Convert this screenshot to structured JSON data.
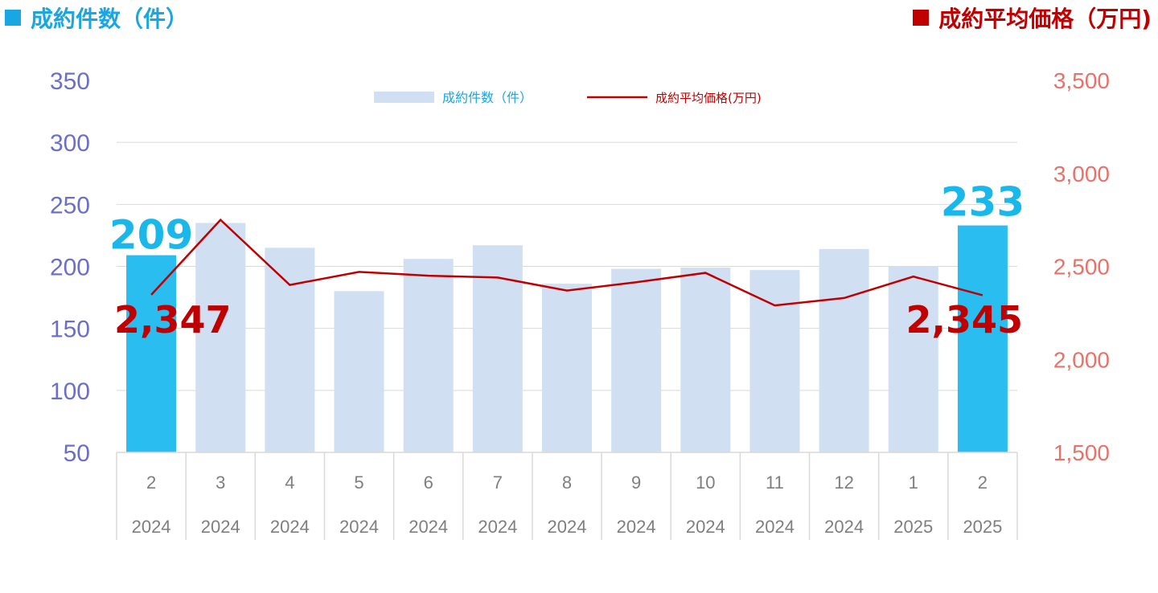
{
  "header": {
    "left_title": "成約件数（件）",
    "right_title": "成約平均価格（万円)",
    "left_color": "#1aa5e3",
    "right_color": "#c00000"
  },
  "chart_data": {
    "type": "bar",
    "categories": [
      {
        "month": "2",
        "year": "2024"
      },
      {
        "month": "3",
        "year": "2024"
      },
      {
        "month": "4",
        "year": "2024"
      },
      {
        "month": "5",
        "year": "2024"
      },
      {
        "month": "6",
        "year": "2024"
      },
      {
        "month": "7",
        "year": "2024"
      },
      {
        "month": "8",
        "year": "2024"
      },
      {
        "month": "9",
        "year": "2024"
      },
      {
        "month": "10",
        "year": "2024"
      },
      {
        "month": "11",
        "year": "2024"
      },
      {
        "month": "12",
        "year": "2024"
      },
      {
        "month": "1",
        "year": "2025"
      },
      {
        "month": "2",
        "year": "2025"
      }
    ],
    "series": [
      {
        "name": "成約件数（件）",
        "kind": "bar",
        "axis": "left",
        "color": "#d0dff2",
        "highlight_color": "#29bdf0",
        "highlight_indices": [
          0,
          12
        ],
        "values": [
          209,
          235,
          215,
          180,
          206,
          217,
          186,
          198,
          199,
          197,
          214,
          200,
          233
        ]
      },
      {
        "name": "成約平均価格(万円)",
        "kind": "line",
        "axis": "right",
        "color": "#c00000",
        "values": [
          2347,
          2750,
          2400,
          2470,
          2450,
          2440,
          2370,
          2415,
          2465,
          2290,
          2330,
          2445,
          2345
        ]
      }
    ],
    "y_left": {
      "min": 50,
      "max": 350,
      "ticks": [
        "350",
        "300",
        "250",
        "200",
        "150",
        "100",
        "50"
      ],
      "color": "#6b6fc9"
    },
    "y_right": {
      "min": 1500,
      "max": 3500,
      "ticks": [
        "3,500",
        "3,000",
        "2,500",
        "2,000",
        "1,500"
      ],
      "color": "#e8726a"
    },
    "annotations": {
      "first_bar_label": "209",
      "last_bar_label": "233",
      "first_price_label": "2,347",
      "last_price_label": "2,345"
    },
    "grid": true,
    "legend": "top-center"
  }
}
